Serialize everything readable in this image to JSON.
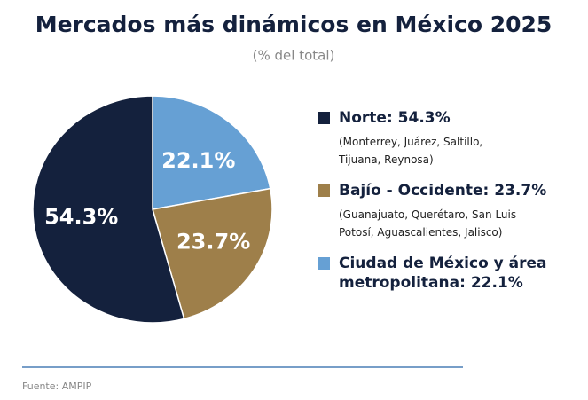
{
  "chart_data": {
    "type": "pie",
    "title": "Mercados más dinámicos en México 2025",
    "subtitle": "(% del total)",
    "categories": [
      "Norte: 54.3%",
      "Bajío - Occidente: 23.7%",
      "Ciudad de México y área metropolitana: 22.1%"
    ],
    "details": [
      [
        "(Monterrey, Juárez, Saltillo,",
        "Tijuana, Reynosa)"
      ],
      [
        "(Guanajuato, Querétaro, San Luis",
        "Potosí, Aguascalientes, Jalisco)"
      ],
      []
    ],
    "values": [
      54.3,
      23.7,
      22.1
    ],
    "value_labels": [
      "54.3%",
      "23.7%",
      "22.1%"
    ],
    "colors": [
      "#14213d",
      "#9e7f4a",
      "#66a0d4"
    ],
    "source": "Fuente: AMPIP"
  }
}
